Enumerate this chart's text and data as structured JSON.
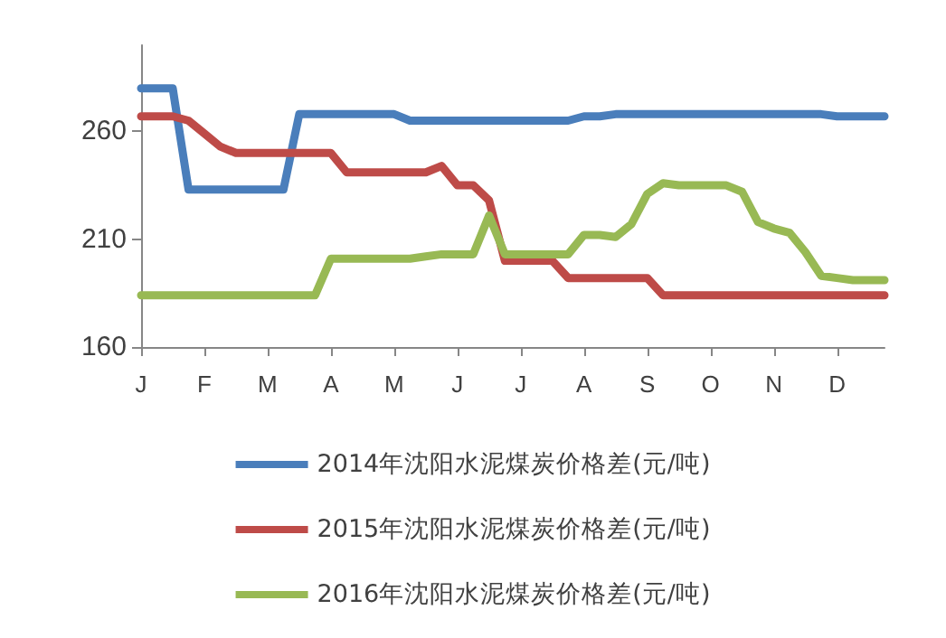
{
  "chart_data": {
    "type": "line",
    "categories": [
      "J",
      null,
      null,
      null,
      "F",
      null,
      null,
      null,
      "M",
      null,
      null,
      null,
      "A",
      null,
      null,
      null,
      "M",
      null,
      null,
      null,
      "J",
      null,
      null,
      null,
      "J",
      null,
      null,
      null,
      "A",
      null,
      null,
      null,
      "S",
      null,
      null,
      null,
      "O",
      null,
      null,
      null,
      "N",
      null,
      null,
      null,
      "D",
      null,
      null,
      null
    ],
    "ylim": [
      160,
      300
    ],
    "yticks": [
      160,
      210,
      260
    ],
    "grid": false,
    "legend": "bottom",
    "marker": "none",
    "line_style": "solid",
    "series": [
      {
        "name": "2014年沈阳水泥煤炭价格差(元/吨)",
        "color": "#4a7ebb",
        "values": [
          280,
          280,
          280,
          233,
          233,
          233,
          233,
          233,
          233,
          233,
          268,
          268,
          268,
          268,
          268,
          268,
          268,
          265,
          265,
          265,
          265,
          265,
          265,
          265,
          265,
          265,
          265,
          265,
          267,
          267,
          268,
          268,
          268,
          268,
          268,
          268,
          268,
          268,
          268,
          268,
          268,
          268,
          268,
          268,
          267,
          267,
          267,
          267
        ]
      },
      {
        "name": "2015年沈阳水泥煤炭价格差(元/吨)",
        "color": "#be4b48",
        "values": [
          267,
          267,
          267,
          265,
          259,
          253,
          250,
          250,
          250,
          250,
          250,
          250,
          250,
          241,
          241,
          241,
          241,
          241,
          241,
          244,
          235,
          235,
          228,
          200,
          200,
          200,
          200,
          192,
          192,
          192,
          192,
          192,
          192,
          184,
          184,
          184,
          184,
          184,
          184,
          184,
          184,
          184,
          184,
          184,
          184,
          184,
          184,
          184
        ]
      },
      {
        "name": "2016年沈阳水泥煤炭价格差(元/吨)",
        "color": "#98b954",
        "values": [
          184,
          184,
          184,
          184,
          184,
          184,
          184,
          184,
          184,
          184,
          184,
          184,
          201,
          201,
          201,
          201,
          201,
          201,
          202,
          203,
          203,
          203,
          221,
          203,
          203,
          203,
          203,
          203,
          212,
          212,
          211,
          217,
          231,
          236,
          235,
          235,
          235,
          235,
          232,
          218,
          215,
          213,
          204,
          193,
          192,
          191,
          191,
          191
        ]
      }
    ]
  }
}
